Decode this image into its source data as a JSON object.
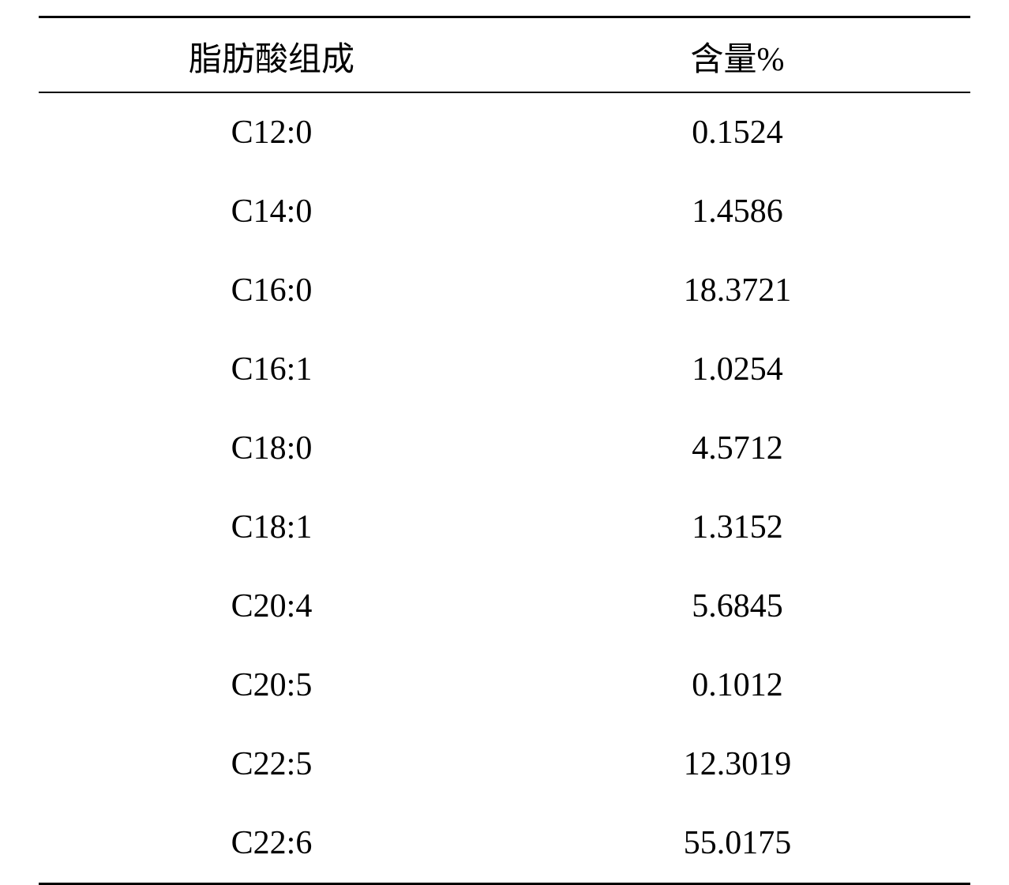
{
  "table": {
    "type": "table",
    "columns": [
      "脂肪酸组成",
      "含量%"
    ],
    "rows": [
      [
        "C12:0",
        "0.1524"
      ],
      [
        "C14:0",
        "1.4586"
      ],
      [
        "C16:0",
        "18.3721"
      ],
      [
        "C16:1",
        "1.0254"
      ],
      [
        "C18:0",
        "4.5712"
      ],
      [
        "C18:1",
        "1.3152"
      ],
      [
        "C20:4",
        "5.6845"
      ],
      [
        "C20:5",
        "0.1012"
      ],
      [
        "C22:5",
        "12.3019"
      ],
      [
        "C22:6",
        "55.0175"
      ]
    ],
    "border_top_width": 3,
    "border_bottom_width": 3,
    "header_border_width": 2,
    "border_color": "#000000",
    "background_color": "#ffffff",
    "text_color": "#000000",
    "header_fontsize": 42,
    "cell_fontsize": 42,
    "column_widths": [
      "50%",
      "50%"
    ],
    "row_padding": 26
  }
}
